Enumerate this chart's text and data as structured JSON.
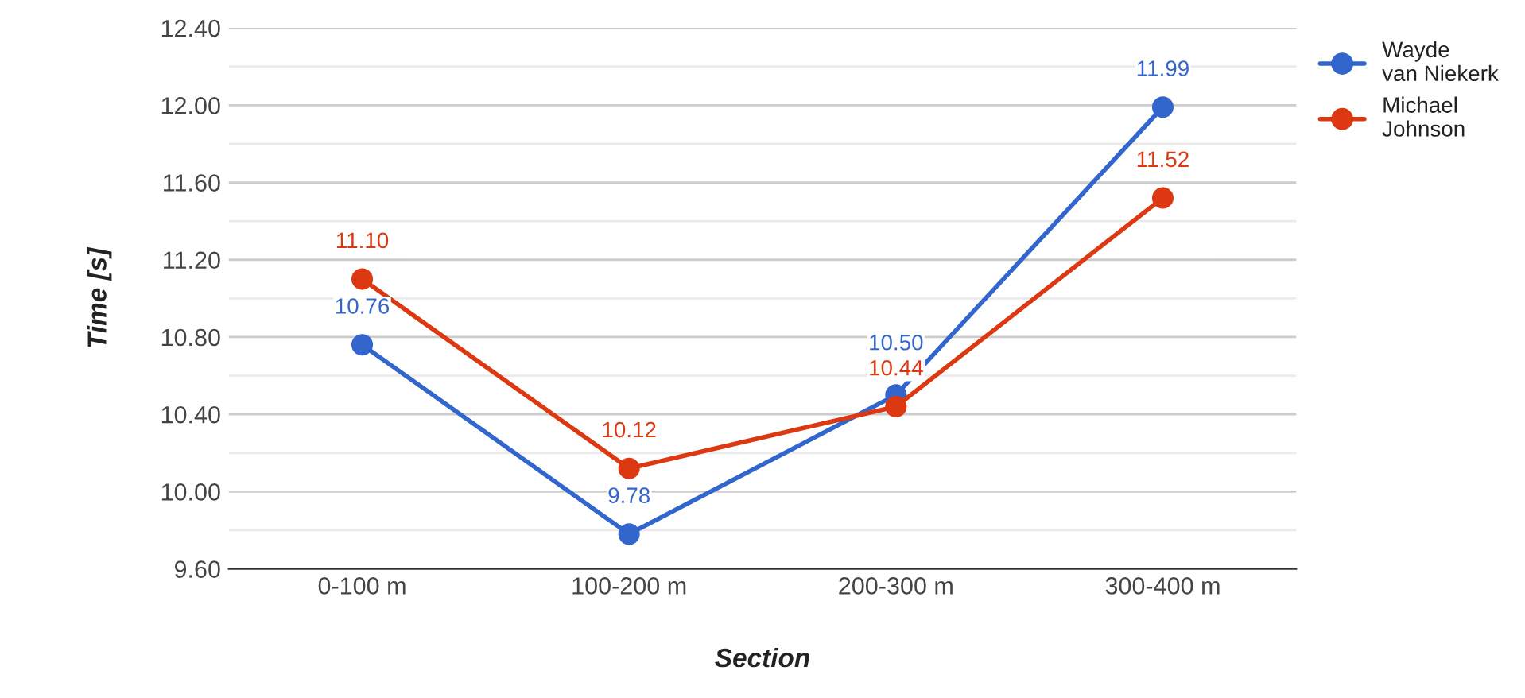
{
  "chart_data": {
    "type": "line",
    "xlabel": "Section",
    "ylabel": "Time [s]",
    "categories": [
      "0-100 m",
      "100-200 m",
      "200-300 m",
      "300-400 m"
    ],
    "series": [
      {
        "name": "Wayde van Niekerk",
        "color": "#3366cc",
        "values": [
          10.76,
          9.78,
          10.5,
          11.99
        ],
        "value_labels": [
          "10.76",
          "9.78",
          "10.50",
          "11.99"
        ]
      },
      {
        "name": "Michael Johnson",
        "color": "#dc3912",
        "values": [
          11.1,
          10.12,
          10.44,
          11.52
        ],
        "value_labels": [
          "11.10",
          "10.12",
          "10.44",
          "11.52"
        ]
      }
    ],
    "ylim": [
      9.6,
      12.4
    ],
    "yticks": [
      {
        "value": 9.6,
        "label": "9.60"
      },
      {
        "value": 9.8,
        "label": null
      },
      {
        "value": 10.0,
        "label": "10.00"
      },
      {
        "value": 10.2,
        "label": null
      },
      {
        "value": 10.4,
        "label": "10.40"
      },
      {
        "value": 10.6,
        "label": null
      },
      {
        "value": 10.8,
        "label": "10.80"
      },
      {
        "value": 11.0,
        "label": null
      },
      {
        "value": 11.2,
        "label": "11.20"
      },
      {
        "value": 11.4,
        "label": null
      },
      {
        "value": 11.6,
        "label": "11.60"
      },
      {
        "value": 11.8,
        "label": null
      },
      {
        "value": 12.0,
        "label": "12.00"
      },
      {
        "value": 12.2,
        "label": null
      },
      {
        "value": 12.4,
        "label": "12.40"
      }
    ],
    "grid": "y",
    "legend": "top right",
    "marker": "circle",
    "line_style": "solid"
  }
}
